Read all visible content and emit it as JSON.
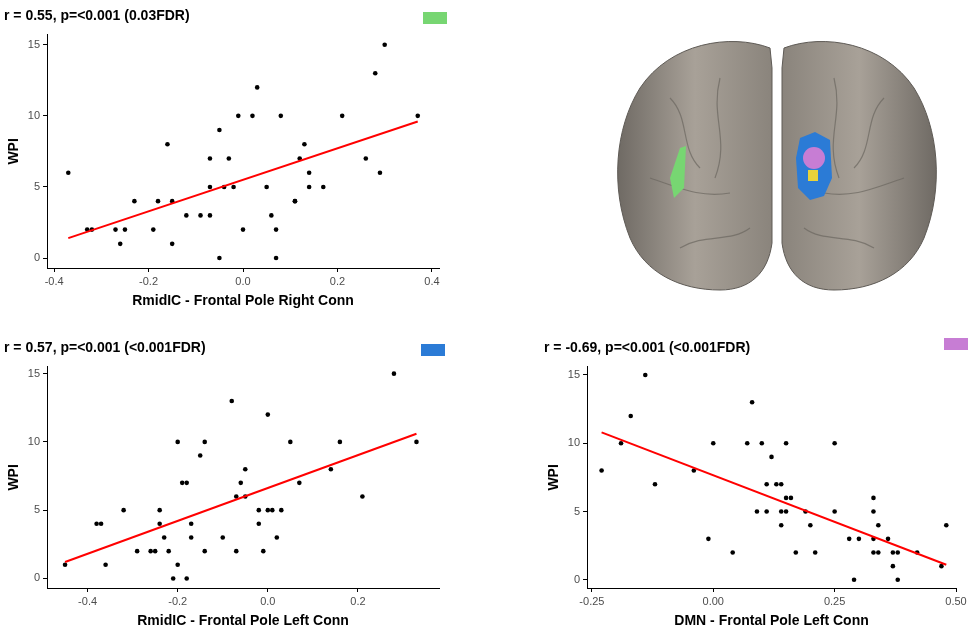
{
  "chart_data": [
    {
      "type": "scatter",
      "title": "r = 0.55, p=<0.001 (0.03FDR)",
      "x_label": "RmidIC - Frontal Pole Right Conn",
      "y_label": "WPI",
      "color": "#77d672",
      "grid": false,
      "xlim": [
        -0.415,
        0.415
      ],
      "xticks": [
        -0.4,
        -0.2,
        {
          "value": 0,
          "label": "0.0"
        },
        0.2,
        0.4
      ],
      "ylim": [
        -0.7,
        15.7
      ],
      "yticks": [
        0,
        5,
        10,
        15
      ],
      "series": [
        {
          "type": "scatter",
          "color": "#000000",
          "x": [
            -0.37,
            -0.33,
            -0.32,
            -0.27,
            -0.26,
            -0.25,
            -0.23,
            -0.19,
            -0.18,
            -0.16,
            -0.15,
            -0.15,
            -0.12,
            -0.09,
            -0.07,
            -0.07,
            -0.07,
            -0.05,
            -0.04,
            -0.05,
            -0.03,
            -0.02,
            -0.01,
            0.0,
            0.02,
            0.03,
            0.05,
            0.06,
            0.07,
            0.07,
            0.08,
            0.11,
            0.11,
            0.12,
            0.13,
            0.14,
            0.14,
            0.17,
            0.21,
            0.26,
            0.28,
            0.29,
            0.3,
            0.37
          ],
          "values": [
            6,
            2,
            2,
            2,
            1,
            2,
            4,
            2,
            4,
            8,
            4,
            1,
            3,
            3,
            7,
            5,
            3,
            9,
            5,
            0,
            7,
            5,
            10,
            2,
            10,
            12,
            5,
            3,
            2,
            0,
            10,
            4,
            4,
            7,
            8,
            6,
            5,
            5,
            10,
            7,
            13,
            6,
            15,
            10
          ]
        },
        {
          "type": "line",
          "color": "#ff0000",
          "x": [
            -0.37,
            0.37
          ],
          "values": [
            1.4,
            9.6
          ]
        }
      ]
    },
    {
      "type": "scatter",
      "title": "r = 0.57, p=<0.001 (<0.001FDR)",
      "x_label": "RmidIC - Frontal Pole Left Conn",
      "y_label": "WPI",
      "color": "#2b7bd6",
      "grid": false,
      "xlim": [
        -0.49,
        0.38
      ],
      "xticks": [
        -0.4,
        -0.2,
        {
          "value": 0,
          "label": "0.0"
        },
        0.2
      ],
      "ylim": [
        -0.7,
        15.5
      ],
      "yticks": [
        0,
        5,
        10,
        15
      ],
      "series": [
        {
          "type": "scatter",
          "color": "#000000",
          "x": [
            -0.45,
            -0.38,
            -0.37,
            -0.36,
            -0.32,
            -0.29,
            -0.26,
            -0.25,
            -0.24,
            -0.24,
            -0.23,
            -0.22,
            -0.21,
            -0.2,
            -0.2,
            -0.19,
            -0.18,
            -0.18,
            -0.17,
            -0.17,
            -0.15,
            -0.14,
            -0.14,
            -0.1,
            -0.08,
            -0.07,
            -0.07,
            -0.06,
            -0.05,
            -0.05,
            -0.02,
            -0.02,
            -0.01,
            0.0,
            0.0,
            0.01,
            0.02,
            0.03,
            0.05,
            0.07,
            0.14,
            0.16,
            0.21,
            0.28,
            0.33
          ],
          "values": [
            1,
            4,
            4,
            1,
            5,
            2,
            2,
            2,
            5,
            4,
            3,
            2,
            0,
            1,
            10,
            7,
            0,
            7,
            4,
            3,
            9,
            10,
            2,
            3,
            13,
            6,
            2,
            7,
            8,
            6,
            4,
            5,
            2,
            5,
            12,
            5,
            3,
            5,
            10,
            7,
            8,
            10,
            6,
            15,
            10
          ]
        },
        {
          "type": "line",
          "color": "#ff0000",
          "x": [
            -0.45,
            0.33
          ],
          "values": [
            1.2,
            10.6
          ]
        }
      ]
    },
    {
      "type": "scatter",
      "title": "r = -0.69, p=<0.001 (<0.001FDR)",
      "x_label": "DMN - Frontal Pole Left Conn",
      "y_label": "WPI",
      "color": "#c77dd4",
      "grid": false,
      "xlim": [
        -0.26,
        0.5
      ],
      "xticks": [
        -0.25,
        {
          "value": 0,
          "label": "0.00"
        },
        0.25,
        {
          "value": 0.5,
          "label": "0.50"
        }
      ],
      "ylim": [
        -0.6,
        15.6
      ],
      "yticks": [
        0,
        5,
        10,
        15
      ],
      "series": [
        {
          "type": "scatter",
          "color": "#000000",
          "x": [
            -0.23,
            -0.19,
            -0.17,
            -0.14,
            -0.12,
            -0.04,
            -0.01,
            0.0,
            0.07,
            0.08,
            0.04,
            0.09,
            0.1,
            0.11,
            0.11,
            0.12,
            0.13,
            0.14,
            0.14,
            0.14,
            0.15,
            0.15,
            0.15,
            0.17,
            0.16,
            0.19,
            0.2,
            0.21,
            0.25,
            0.25,
            0.28,
            0.29,
            0.3,
            0.33,
            0.33,
            0.33,
            0.33,
            0.34,
            0.34,
            0.36,
            0.37,
            0.37,
            0.38,
            0.38,
            0.42,
            0.47,
            0.48
          ],
          "values": [
            8,
            10,
            12,
            15,
            7,
            8,
            3,
            10,
            10,
            13,
            2,
            5,
            10,
            5,
            7,
            9,
            7,
            5,
            4,
            7,
            10,
            5,
            6,
            2,
            6,
            5,
            4,
            2,
            10,
            5,
            3,
            0,
            3,
            2,
            6,
            5,
            3,
            4,
            2,
            3,
            2,
            1,
            0,
            2,
            2,
            1,
            4
          ]
        },
        {
          "type": "line",
          "color": "#ff0000",
          "x": [
            -0.23,
            0.48
          ],
          "values": [
            10.8,
            1.1
          ]
        }
      ]
    }
  ]
}
